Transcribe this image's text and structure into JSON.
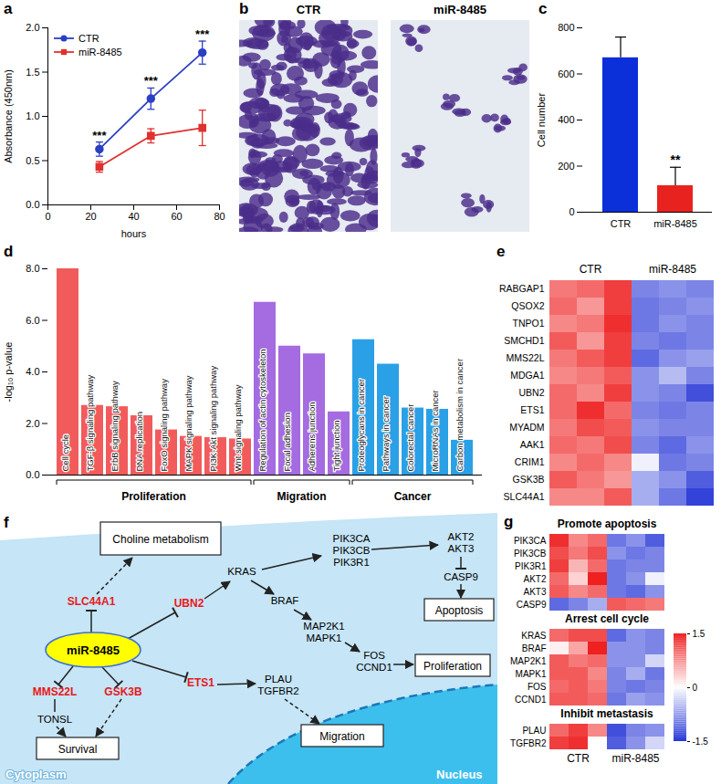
{
  "chart_data": [
    {
      "panel": "a",
      "type": "line",
      "x": [
        24,
        48,
        72
      ],
      "x_label": "hours",
      "y_label": "Absorbance (450nm)",
      "xlim": [
        0,
        80
      ],
      "xticks": [
        0,
        20,
        40,
        60,
        80
      ],
      "ylim": [
        0,
        2
      ],
      "yticks": [
        {
          "value": 0,
          "label": "0.0"
        },
        0.5,
        {
          "value": 1,
          "label": "1.0"
        },
        1.5,
        {
          "value": 2,
          "label": "2.0"
        }
      ],
      "legend": "top-left",
      "series": [
        {
          "name": "CTR",
          "color": "#2b3fc4",
          "marker": "circle",
          "values": [
            0.63,
            1.2,
            1.72
          ],
          "errors": [
            0.08,
            0.12,
            0.13
          ]
        },
        {
          "name": "miR-8485",
          "color": "#e0312f",
          "marker": "square",
          "values": [
            0.43,
            0.78,
            0.87
          ],
          "errors": [
            0.06,
            0.08,
            0.2
          ]
        }
      ],
      "annotations": [
        {
          "x": 24,
          "text": "***"
        },
        {
          "x": 48,
          "text": "***"
        },
        {
          "x": 72,
          "text": "***"
        }
      ]
    },
    {
      "panel": "c",
      "type": "bar",
      "categories": [
        "CTR",
        "miR-8485"
      ],
      "values": [
        670,
        115
      ],
      "errors": [
        90,
        80
      ],
      "colors": [
        "#0b2fd9",
        "#e8231f"
      ],
      "y_label": "Cell number",
      "ylim": [
        0,
        800
      ],
      "yticks": [
        0,
        200,
        400,
        600,
        800
      ],
      "annotations": [
        {
          "category": "miR-8485",
          "text": "**"
        }
      ]
    },
    {
      "panel": "d",
      "type": "bar",
      "y_label": "-log₁₀ p-value",
      "ylim": [
        0,
        8
      ],
      "yticks": [
        {
          "value": 0,
          "label": "0.0"
        },
        {
          "value": 2,
          "label": "2.0"
        },
        {
          "value": 4,
          "label": "4.0"
        },
        {
          "value": 6,
          "label": "6.0"
        },
        {
          "value": 8,
          "label": "8.0"
        }
      ],
      "series": [
        {
          "name": "Proliferation",
          "color": "#f25b5b",
          "categories": [
            "Cell cycle",
            "TGF-β signaling pathway",
            "ErbB signaling pathway",
            "DNA replication",
            "FoxO signaling pathway",
            "MAPK signaling pathway",
            "PI3K-Akt signaling pathway",
            "Wnt signaling pathway"
          ],
          "values": [
            8.0,
            2.7,
            2.65,
            2.3,
            1.75,
            1.5,
            1.45,
            1.4
          ]
        },
        {
          "name": "Migration",
          "color": "#a56be0",
          "categories": [
            "Regulation of actin cytoskeleton",
            "Focal adhesion",
            "Adherens junction",
            "Tight junction"
          ],
          "values": [
            6.7,
            5.0,
            4.7,
            2.45
          ]
        },
        {
          "name": "Cancer",
          "color": "#2aa0e6",
          "categories": [
            "Proteoglycans in cancer",
            "Pathways in cancer",
            "Colorectal cancer",
            "MicroRNAs in cancer",
            "Carbon metabolism in cancer"
          ],
          "values": [
            5.25,
            4.3,
            2.6,
            2.55,
            1.35
          ]
        }
      ]
    },
    {
      "panel": "e",
      "type": "heatmap",
      "columns": [
        "CTR",
        "CTR",
        "CTR",
        "miR-8485",
        "miR-8485",
        "miR-8485"
      ],
      "rows": [
        "RABGAP1",
        "QSOX2",
        "TNPO1",
        "SMCHD1",
        "MMS22L",
        "MDGA1",
        "UBN2",
        "ETS1",
        "MYADM",
        "AAK1",
        "CRIM1",
        "GSK3B",
        "SLC44A1"
      ],
      "values": [
        [
          0.9,
          1.0,
          1.3,
          -0.9,
          -0.8,
          -0.9
        ],
        [
          1.0,
          0.7,
          1.3,
          -1.0,
          -0.9,
          -0.8
        ],
        [
          0.8,
          0.9,
          1.4,
          -1.0,
          -0.8,
          -0.9
        ],
        [
          1.1,
          0.7,
          1.3,
          -0.9,
          -1.0,
          -0.9
        ],
        [
          0.9,
          1.1,
          1.3,
          -1.1,
          -0.8,
          -0.7
        ],
        [
          0.8,
          0.9,
          1.1,
          -0.8,
          -0.5,
          -0.9
        ],
        [
          1.0,
          0.8,
          1.3,
          -0.8,
          -0.9,
          -1.3
        ],
        [
          1.0,
          1.4,
          1.0,
          -0.9,
          -1.0,
          -0.9
        ],
        [
          0.9,
          1.2,
          1.1,
          -0.8,
          -0.9,
          -0.9
        ],
        [
          1.0,
          0.9,
          1.2,
          -0.9,
          -1.1,
          -0.8
        ],
        [
          0.8,
          1.0,
          0.8,
          -0.1,
          -1.0,
          -0.9
        ],
        [
          1.1,
          0.9,
          0.7,
          -0.6,
          -0.8,
          -1.2
        ],
        [
          0.8,
          0.8,
          1.1,
          -0.6,
          -1.0,
          -1.4
        ]
      ]
    },
    {
      "panel": "g",
      "type": "heatmap",
      "columns": [
        "CTR",
        "CTR",
        "CTR",
        "miR-8485",
        "miR-8485",
        "miR-8485"
      ],
      "groups": [
        {
          "title": "Promote apoptosis",
          "rows": [
            "PIK3CA",
            "PIK3CB",
            "PIK3R1",
            "AKT2",
            "AKT3",
            "CASP9"
          ],
          "values": [
            [
              1.4,
              0.8,
              1.0,
              -1.0,
              -0.8,
              -1.2
            ],
            [
              1.2,
              0.9,
              1.2,
              -0.8,
              -1.0,
              -0.9
            ],
            [
              1.3,
              0.5,
              1.0,
              -1.0,
              -0.9,
              -0.9
            ],
            [
              1.0,
              0.3,
              1.5,
              -1.0,
              -0.8,
              -0.1
            ],
            [
              1.1,
              0.8,
              1.0,
              -1.0,
              -1.1,
              -0.8
            ],
            [
              -1.1,
              -0.9,
              -0.6,
              1.1,
              1.0,
              0.9
            ]
          ]
        },
        {
          "title": "Arrest cell cycle",
          "rows": [
            "KRAS",
            "BRAF",
            "MAP2K1",
            "MAPK1",
            "FOS",
            "CCND1"
          ],
          "values": [
            [
              1.0,
              1.2,
              1.2,
              -1.1,
              -0.8,
              -0.9
            ],
            [
              0.1,
              0.6,
              1.5,
              -0.8,
              -0.8,
              -0.9
            ],
            [
              1.1,
              0.9,
              1.0,
              -0.8,
              -0.8,
              -0.3
            ],
            [
              1.1,
              1.1,
              0.8,
              -0.9,
              -0.6,
              -1.0
            ],
            [
              1.0,
              1.1,
              0.9,
              -0.9,
              -1.0,
              -0.9
            ],
            [
              1.1,
              1.1,
              1.0,
              -1.0,
              -0.7,
              -0.8
            ]
          ]
        },
        {
          "title": "Inhibit metastasis",
          "rows": [
            "PLAU",
            "TGFBR2"
          ],
          "values": [
            [
              1.0,
              1.3,
              0.8,
              -1.3,
              -0.9,
              -0.8
            ],
            [
              1.3,
              1.4,
              0.0,
              -1.2,
              -0.8,
              -0.3
            ]
          ]
        }
      ],
      "color_bar": {
        "range": [
          -1.5,
          1.5
        ],
        "ticks": [
          -1.5,
          0,
          1.5
        ],
        "colors": [
          "#2434d6",
          "#ffffff",
          "#ee2020"
        ]
      }
    }
  ],
  "images": {
    "panel": "b",
    "titles": [
      "CTR",
      "miR-8485"
    ]
  },
  "diagram": {
    "panel": "f",
    "regions": {
      "cytoplasm": "Cytoplasm",
      "nucleus": "Nucleus"
    },
    "nodes": {
      "mir": "miR-8485",
      "slc": "SLC44A1",
      "ubn": "UBN2",
      "mms": "MMS22L",
      "gsk": "GSK3B",
      "ets": "ETS1",
      "choline": "Choline metabolism",
      "tonsl": "TONSL",
      "survival": "Survival",
      "kras": "KRAS",
      "pik": [
        "PIK3CA",
        "PIK3CB",
        "PIK3R1"
      ],
      "akt": [
        "AKT2",
        "AKT3"
      ],
      "casp": "CASP9",
      "apoptosis": "Apoptosis",
      "braf": "BRAF",
      "mapk": [
        "MAP2K1",
        "MAPK1"
      ],
      "fos": [
        "FOS",
        "CCND1"
      ],
      "prolif": "Proliferation",
      "plau": [
        "PLAU",
        "TGFBR2"
      ],
      "migration": "Migration"
    }
  }
}
